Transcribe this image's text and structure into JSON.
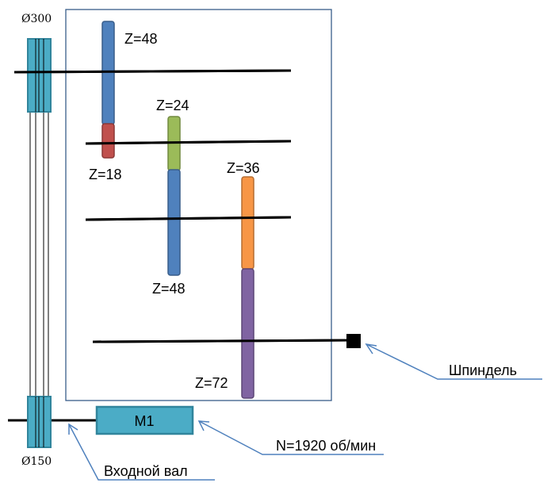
{
  "pulleys": {
    "top_diameter": "Ø300",
    "bottom_diameter": "Ø150"
  },
  "gears": {
    "g48_top": "Z=48",
    "g18": "Z=18",
    "g24": "Z=24",
    "g48_mid": "Z=48",
    "g36": "Z=36",
    "g72": "Z=72"
  },
  "motor": {
    "label": "M1"
  },
  "callouts": {
    "spindle": "Шпиндель",
    "speed": "N=1920 об/мин",
    "input_shaft": "Входной вал"
  },
  "colors": {
    "pulley": "#4bacc6",
    "gear_blue": "#4f81bd",
    "gear_red": "#c0504d",
    "gear_green": "#9bbb59",
    "gear_orange": "#f79646",
    "gear_purple": "#8064a2",
    "frame": "#385d8a",
    "leader": "#4f81bd"
  }
}
